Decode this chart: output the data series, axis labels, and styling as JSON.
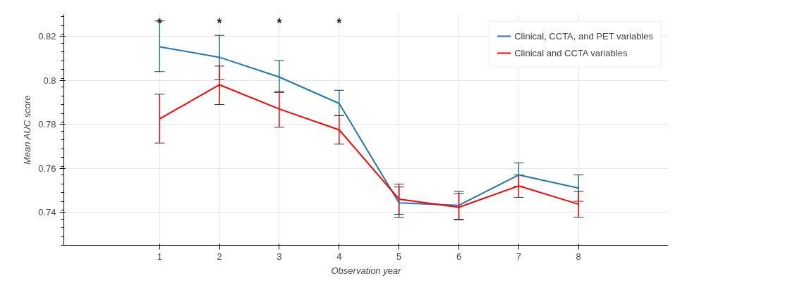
{
  "chart_data": {
    "type": "line",
    "xlabel": "Observation year",
    "ylabel": "Mean AUC score",
    "x": [
      1,
      2,
      3,
      4,
      5,
      6,
      7,
      8
    ],
    "series": [
      {
        "name": "Clinical, CCTA, and PET variables",
        "color": "#1f77b4",
        "values": [
          0.8153,
          0.8105,
          0.8015,
          0.7895,
          0.7443,
          0.7432,
          0.757,
          0.751
        ],
        "errors": [
          [
            0.804,
            0.827
          ],
          [
            0.8005,
            0.8205
          ],
          [
            0.7945,
            0.809
          ],
          [
            0.784,
            0.7955
          ],
          [
            0.7376,
            0.7515
          ],
          [
            0.7368,
            0.7495
          ],
          [
            0.7518,
            0.7625
          ],
          [
            0.745,
            0.757
          ]
        ]
      },
      {
        "name": "Clinical and CCTA variables",
        "color": "#ff0000",
        "values": [
          0.7825,
          0.798,
          0.787,
          0.7775,
          0.746,
          0.7423,
          0.752,
          0.7437
        ],
        "errors": [
          [
            0.7715,
            0.7937
          ],
          [
            0.789,
            0.8065
          ],
          [
            0.7787,
            0.795
          ],
          [
            0.771,
            0.784
          ],
          [
            0.7391,
            0.7528
          ],
          [
            0.7365,
            0.7485
          ],
          [
            0.7468,
            0.757
          ],
          [
            0.7377,
            0.7495
          ]
        ]
      }
    ],
    "annotations": [
      "*",
      "*",
      "*",
      "*"
    ],
    "xlim": [
      -0.6,
      9.5
    ],
    "xticks": [
      1,
      2,
      3,
      4,
      5,
      6,
      7,
      8
    ],
    "ylim": [
      0.725,
      0.83
    ],
    "yticks": [
      0.74,
      0.76,
      0.78,
      0.8,
      0.82
    ],
    "grid": true,
    "legend": "top right",
    "marker": "none",
    "line_style": "solid"
  }
}
